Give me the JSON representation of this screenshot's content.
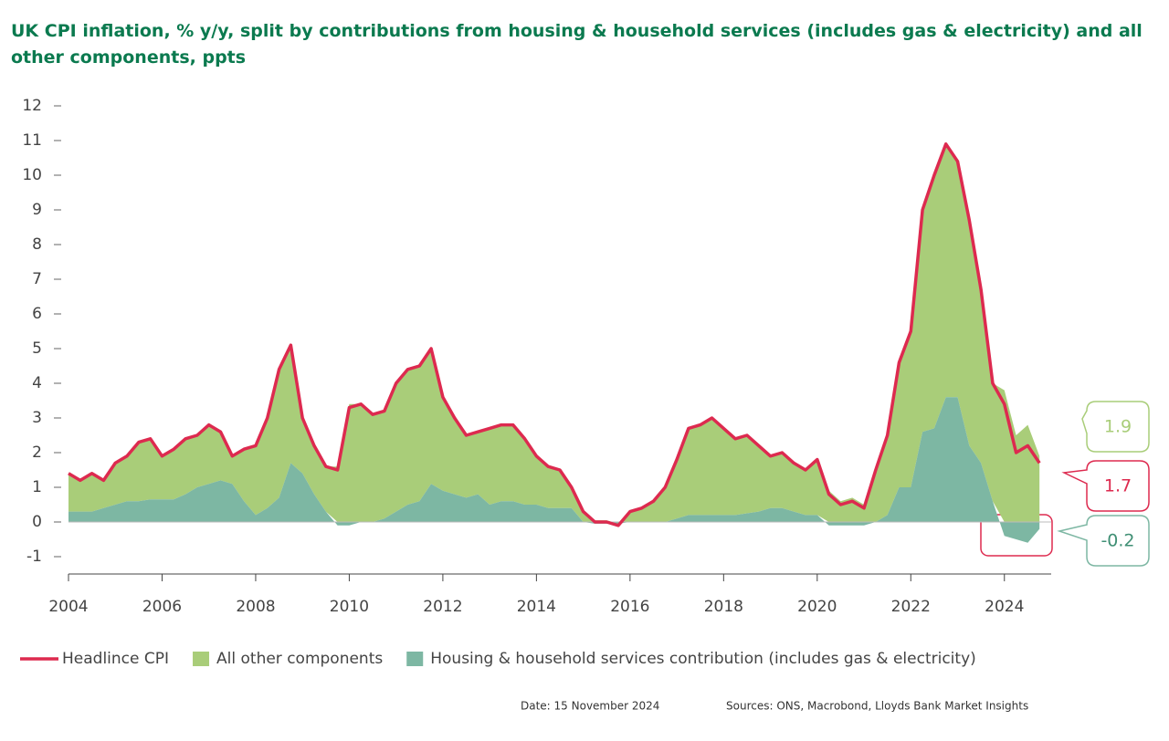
{
  "chart_data": {
    "type": "stacked-area-line",
    "title": "UK CPI inflation, % y/y, split by contributions from housing & household services (includes gas & electricity) and all other components, ppts",
    "x": [
      2004,
      2004.25,
      2004.5,
      2004.75,
      2005,
      2005.25,
      2005.5,
      2005.75,
      2006,
      2006.25,
      2006.5,
      2006.75,
      2007,
      2007.25,
      2007.5,
      2007.75,
      2008,
      2008.25,
      2008.5,
      2008.75,
      2009,
      2009.25,
      2009.5,
      2009.75,
      2010,
      2010.25,
      2010.5,
      2010.75,
      2011,
      2011.25,
      2011.5,
      2011.75,
      2012,
      2012.25,
      2012.5,
      2012.75,
      2013,
      2013.25,
      2013.5,
      2013.75,
      2014,
      2014.25,
      2014.5,
      2014.75,
      2015,
      2015.25,
      2015.5,
      2015.75,
      2016,
      2016.25,
      2016.5,
      2016.75,
      2017,
      2017.25,
      2017.5,
      2017.75,
      2018,
      2018.25,
      2018.5,
      2018.75,
      2019,
      2019.25,
      2019.5,
      2019.75,
      2020,
      2020.25,
      2020.5,
      2020.75,
      2021,
      2021.25,
      2021.5,
      2021.75,
      2022,
      2022.25,
      2022.5,
      2022.75,
      2023,
      2023.25,
      2023.5,
      2023.75,
      2024,
      2024.25,
      2024.5,
      2024.75
    ],
    "series": [
      {
        "name": "Headlince CPI",
        "color": "#dd2a4f",
        "kind": "line",
        "values": [
          1.4,
          1.2,
          1.4,
          1.2,
          1.7,
          1.9,
          2.3,
          2.4,
          1.9,
          2.1,
          2.4,
          2.5,
          2.8,
          2.6,
          1.9,
          2.1,
          2.2,
          3.0,
          4.4,
          5.1,
          3.0,
          2.2,
          1.6,
          1.5,
          3.3,
          3.4,
          3.1,
          3.2,
          4.0,
          4.4,
          4.5,
          5.0,
          3.6,
          3.0,
          2.5,
          2.6,
          2.7,
          2.8,
          2.8,
          2.4,
          1.9,
          1.6,
          1.5,
          1.0,
          0.3,
          0.0,
          0.0,
          -0.1,
          0.3,
          0.4,
          0.6,
          1.0,
          1.8,
          2.7,
          2.8,
          3.0,
          2.7,
          2.4,
          2.5,
          2.2,
          1.9,
          2.0,
          1.7,
          1.5,
          1.8,
          0.8,
          0.5,
          0.6,
          0.4,
          1.5,
          2.5,
          4.6,
          5.5,
          9.0,
          10.0,
          10.9,
          10.4,
          8.7,
          6.7,
          4.0,
          3.4,
          2.0,
          2.2,
          1.7
        ]
      },
      {
        "name": "All other components",
        "color": "#a9cd79",
        "kind": "area",
        "values": [
          1.1,
          0.9,
          1.1,
          0.8,
          1.2,
          1.3,
          1.7,
          1.75,
          1.25,
          1.45,
          1.6,
          1.5,
          1.7,
          1.4,
          0.8,
          1.5,
          2.0,
          2.6,
          3.7,
          3.4,
          1.6,
          1.4,
          1.3,
          1.6,
          3.4,
          3.4,
          3.1,
          3.1,
          3.7,
          3.9,
          3.9,
          3.9,
          2.7,
          2.2,
          1.8,
          1.8,
          2.2,
          2.2,
          2.2,
          1.9,
          1.4,
          1.2,
          1.1,
          0.6,
          0.3,
          0.05,
          0.05,
          -0.05,
          0.3,
          0.4,
          0.6,
          1.0,
          1.7,
          2.5,
          2.6,
          2.8,
          2.5,
          2.2,
          2.25,
          1.9,
          1.5,
          1.6,
          1.4,
          1.3,
          1.6,
          0.9,
          0.6,
          0.7,
          0.5,
          1.5,
          2.3,
          3.6,
          4.5,
          6.4,
          7.3,
          7.3,
          6.8,
          6.5,
          5.0,
          3.4,
          3.8,
          2.5,
          2.8,
          1.9
        ]
      },
      {
        "name": "Housing & household services contribution (includes gas & electricity)",
        "color": "#7db7a3",
        "kind": "area",
        "values": [
          0.3,
          0.3,
          0.3,
          0.4,
          0.5,
          0.6,
          0.6,
          0.65,
          0.65,
          0.65,
          0.8,
          1.0,
          1.1,
          1.2,
          1.1,
          0.6,
          0.2,
          0.4,
          0.7,
          1.7,
          1.4,
          0.8,
          0.3,
          -0.1,
          -0.1,
          0.0,
          0.0,
          0.1,
          0.3,
          0.5,
          0.6,
          1.1,
          0.9,
          0.8,
          0.7,
          0.8,
          0.5,
          0.6,
          0.6,
          0.5,
          0.5,
          0.4,
          0.4,
          0.4,
          0.0,
          -0.05,
          -0.05,
          -0.05,
          0.0,
          0.0,
          0.0,
          0.0,
          0.1,
          0.2,
          0.2,
          0.2,
          0.2,
          0.2,
          0.25,
          0.3,
          0.4,
          0.4,
          0.3,
          0.2,
          0.2,
          -0.1,
          -0.1,
          -0.1,
          -0.1,
          0.0,
          0.2,
          1.0,
          1.0,
          2.6,
          2.7,
          3.6,
          3.6,
          2.2,
          1.7,
          0.6,
          -0.4,
          -0.5,
          -0.6,
          -0.2
        ]
      }
    ],
    "xlim": [
      2004,
      2025
    ],
    "xticks": [
      2004,
      2006,
      2008,
      2010,
      2012,
      2014,
      2016,
      2018,
      2020,
      2022,
      2024
    ],
    "ylim": [
      -1.5,
      12.3
    ],
    "yticks": [
      -1,
      0,
      1,
      2,
      3,
      4,
      5,
      6,
      7,
      8,
      9,
      10,
      11,
      12
    ],
    "footer": {
      "date": "Date: 15 November 2024",
      "sources": "Sources: ONS, Macrobond, Lloyds Bank Market Insights"
    }
  }
}
